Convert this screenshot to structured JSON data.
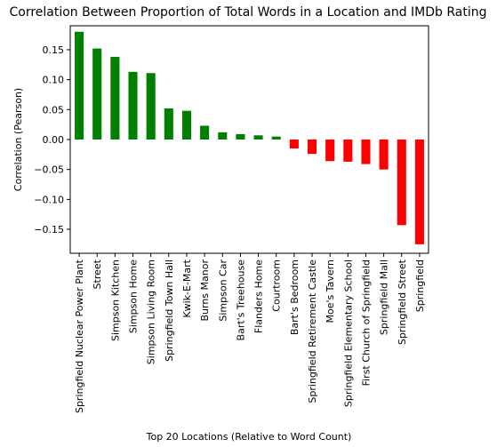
{
  "chart_data": {
    "type": "bar",
    "title": "Correlation Between Proportion of Total Words in a Location and IMDb Rating",
    "xlabel": "Top 20 Locations (Relative to Word Count)",
    "ylabel": "Correlation (Pearson)",
    "ylim": [
      -0.19,
      0.19
    ],
    "yticks": [
      0.15,
      0.1,
      0.05,
      0.0,
      -0.05,
      -0.1,
      -0.15
    ],
    "ytick_labels": [
      "0.15",
      "0.10",
      "0.05",
      "0.00",
      "−0.05",
      "−0.10",
      "−0.15"
    ],
    "grid": false,
    "positive_color": "#008000",
    "negative_color": "#ff0000",
    "categories": [
      "Springfield Nuclear Power Plant",
      "Street",
      "Simpson Kitchen",
      "Simpson Home",
      "Simpson Living Room",
      "Springfield Town Hall",
      "Kwik-E-Mart",
      "Burns Manor",
      "Simpson Car",
      "Bart's Treehouse",
      "Flanders Home",
      "Courtroom",
      "Bart's Bedroom",
      "Springfield Retirement Castle",
      "Moe's Tavern",
      "Springfield Elementary School",
      "First Church of Springfield",
      "Springfield Mall",
      "Springfield Street",
      "Springfield"
    ],
    "values": [
      0.18,
      0.152,
      0.138,
      0.113,
      0.111,
      0.052,
      0.048,
      0.023,
      0.012,
      0.009,
      0.007,
      0.005,
      -0.015,
      -0.024,
      -0.036,
      -0.037,
      -0.041,
      -0.05,
      -0.143,
      -0.175
    ]
  }
}
